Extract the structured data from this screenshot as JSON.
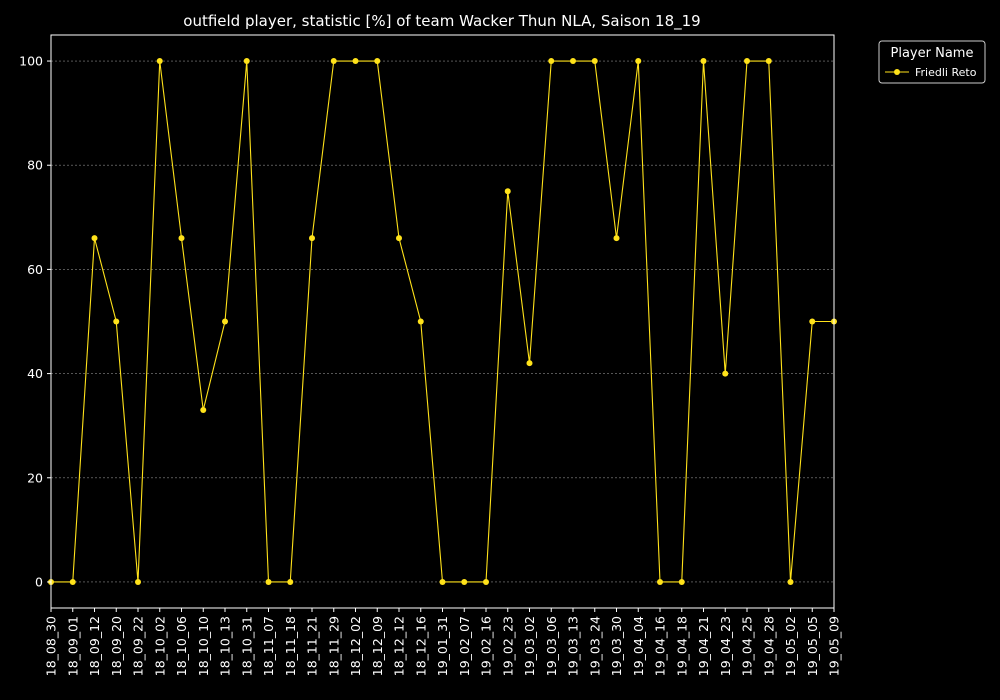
{
  "chart_data": {
    "type": "line",
    "title": "outfield player, statistic [%] of team Wacker Thun NLA, Saison 18_19",
    "xlabel": "",
    "ylabel": "",
    "ylim": [
      -5,
      105
    ],
    "yticks": [
      0,
      20,
      40,
      60,
      80,
      100
    ],
    "grid": true,
    "legend": {
      "title": "Player Name",
      "placement": "outside-top-right"
    },
    "categories": [
      "18_08_30",
      "18_09_01",
      "18_09_12",
      "18_09_20",
      "18_09_22",
      "18_10_02",
      "18_10_06",
      "18_10_10",
      "18_10_13",
      "18_10_31",
      "18_11_07",
      "18_11_18",
      "18_11_21",
      "18_11_29",
      "18_12_02",
      "18_12_09",
      "18_12_12",
      "18_12_16",
      "19_01_31",
      "19_02_07",
      "19_02_16",
      "19_02_23",
      "19_03_02",
      "19_03_06",
      "19_03_13",
      "19_03_24",
      "19_03_30",
      "19_04_04",
      "19_04_16",
      "19_04_18",
      "19_04_21",
      "19_04_23",
      "19_04_25",
      "19_04_28",
      "19_05_02",
      "19_05_05",
      "19_05_09"
    ],
    "series": [
      {
        "name": "Friedli Reto",
        "color": "#ffe21a",
        "values": [
          0,
          0,
          66,
          50,
          0,
          100,
          66,
          33,
          50,
          100,
          0,
          0,
          66,
          100,
          100,
          100,
          66,
          50,
          0,
          0,
          0,
          75,
          42,
          100,
          100,
          100,
          66,
          100,
          0,
          0,
          100,
          40,
          100,
          100,
          0,
          50,
          50
        ]
      }
    ]
  }
}
